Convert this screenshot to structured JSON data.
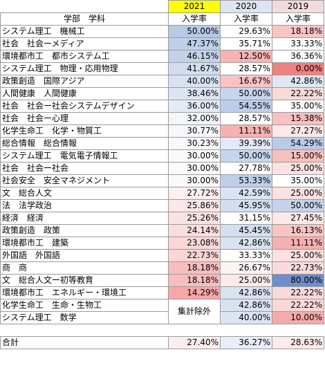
{
  "years": [
    "2021",
    "2020",
    "2019"
  ],
  "year_colors": [
    "#ffff00",
    "#dce6f1",
    "#f2dcdb"
  ],
  "header": {
    "label": "学部　学科",
    "rate": "入学率"
  },
  "rows": [
    {
      "name": "システム理工　機械工",
      "vals": [
        "50.00%",
        "29.63%",
        "18.18%"
      ],
      "bg": [
        "#b7c9e6",
        "#ffffff",
        "#f9c4c4"
      ]
    },
    {
      "name": "社会　社会ーメディア",
      "vals": [
        "47.37%",
        "35.71%",
        "33.33%"
      ],
      "bg": [
        "#bfcfe9",
        "#ffffff",
        "#ffffff"
      ]
    },
    {
      "name": "環境都市工　都市システム工",
      "vals": [
        "46.15%",
        "12.50%",
        "36.36%"
      ],
      "bg": [
        "#c3d2ea",
        "#f7b3b3",
        "#ffffff"
      ]
    },
    {
      "name": "システム理工　物理・応用物理",
      "vals": [
        "41.67%",
        "28.57%",
        "0.00%"
      ],
      "bg": [
        "#d2ddef",
        "#ffffff",
        "#f08080"
      ]
    },
    {
      "name": "政策創造　国際アジア",
      "vals": [
        "40.00%",
        "16.67%",
        "42.86%"
      ],
      "bg": [
        "#d8e2f1",
        "#f9c3c3",
        "#dfe7f3"
      ]
    },
    {
      "name": "人間健康　人間健康",
      "vals": [
        "38.46%",
        "50.00%",
        "22.22%"
      ],
      "bg": [
        "#dde5f3",
        "#c7d5ec",
        "#fad9d9"
      ]
    },
    {
      "name": "社会　社会ー社会システムデザイン",
      "vals": [
        "36.00%",
        "54.55%",
        "35.00%"
      ],
      "bg": [
        "#e5ebf5",
        "#bccdea",
        "#ffffff"
      ]
    },
    {
      "name": "社会　社会ー心理",
      "vals": [
        "32.00%",
        "28.57%",
        "15.38%"
      ],
      "bg": [
        "#f2f5fa",
        "#ffffff",
        "#f8c0c0"
      ]
    },
    {
      "name": "化学生命工　化学・物質工",
      "vals": [
        "30.77%",
        "11.11%",
        "27.27%"
      ],
      "bg": [
        "#f7f8fb",
        "#f7b0b0",
        "#fce8e8"
      ]
    },
    {
      "name": "総合情報　総合情報",
      "vals": [
        "30.23%",
        "39.39%",
        "54.29%"
      ],
      "bg": [
        "#f9f9fb",
        "#e3eaf5",
        "#b9cbe8"
      ]
    },
    {
      "name": "システム理工　電気電子情報工",
      "vals": [
        "30.00%",
        "50.00%",
        "15.00%"
      ],
      "bg": [
        "#fafafb",
        "#c7d5ec",
        "#f8bfbf"
      ]
    },
    {
      "name": "社会　社会ー社会",
      "vals": [
        "30.00%",
        "27.78%",
        "25.00%"
      ],
      "bg": [
        "#fafafb",
        "#ffffff",
        "#fbe1e1"
      ]
    },
    {
      "name": "社会安全　安全マネジメント",
      "vals": [
        "30.00%",
        "53.33%",
        "35.00%"
      ],
      "bg": [
        "#fafafb",
        "#bfcfe9",
        "#ffffff"
      ]
    },
    {
      "name": "文　総合人文",
      "vals": [
        "27.72%",
        "42.59%",
        "25.00%"
      ],
      "bg": [
        "#fdf0f0",
        "#dae3f2",
        "#fbe1e1"
      ]
    },
    {
      "name": "法　法学政治",
      "vals": [
        "25.86%",
        "45.95%",
        "50.00%"
      ],
      "bg": [
        "#fce6e6",
        "#d2ddef",
        "#c4d3eb"
      ]
    },
    {
      "name": "経済　経済",
      "vals": [
        "25.26%",
        "31.15%",
        "27.45%"
      ],
      "bg": [
        "#fce3e3",
        "#ffffff",
        "#fde9e9"
      ]
    },
    {
      "name": "政策創造　政策",
      "vals": [
        "24.14%",
        "45.45%",
        "16.13%"
      ],
      "bg": [
        "#fbdddd",
        "#d3deef",
        "#f9c4c4"
      ]
    },
    {
      "name": "環境都市工　建築",
      "vals": [
        "23.08%",
        "42.86%",
        "11.11%"
      ],
      "bg": [
        "#fbd7d7",
        "#d9e2f1",
        "#f6b0b0"
      ]
    },
    {
      "name": "外国語　外国語",
      "vals": [
        "22.73%",
        "33.33%",
        "25.00%"
      ],
      "bg": [
        "#fbd6d6",
        "#ffffff",
        "#fbe1e1"
      ]
    },
    {
      "name": "商　商",
      "vals": [
        "18.18%",
        "26.67%",
        "22.73%"
      ],
      "bg": [
        "#f9bdbd",
        "#fef4f4",
        "#fadbdb"
      ]
    },
    {
      "name": "文　総合人文ー初等教育",
      "vals": [
        "18.18%",
        "25.00%",
        "80.00%"
      ],
      "bg": [
        "#f9bdbd",
        "#fdeaea",
        "#6f8fcb"
      ]
    },
    {
      "name": "環境都市工　エネルギー・環境工",
      "vals": [
        "14.29%",
        "42.86%",
        "22.22%"
      ],
      "bg": [
        "#f7a7a7",
        "#d9e2f1",
        "#fad9d9"
      ]
    },
    {
      "name": "化学生命工　生命・生物工",
      "vals": [
        "",
        "42.86%",
        "22.22%"
      ],
      "bg": [
        "#ffffff",
        "#d9e2f1",
        "#fad9d9"
      ]
    },
    {
      "name": "システム理工　数学",
      "vals": [
        "",
        "40.00%",
        "10.00%"
      ],
      "bg": [
        "#ffffff",
        "#dde5f3",
        "#f6abab"
      ]
    }
  ],
  "excluded_label": "集計除外",
  "total": {
    "label": "合計",
    "vals": [
      "27.40%",
      "36.27%",
      "28.63%"
    ],
    "bg": [
      "#fdeeee",
      "#e8eef7",
      "#fdeaea"
    ]
  }
}
